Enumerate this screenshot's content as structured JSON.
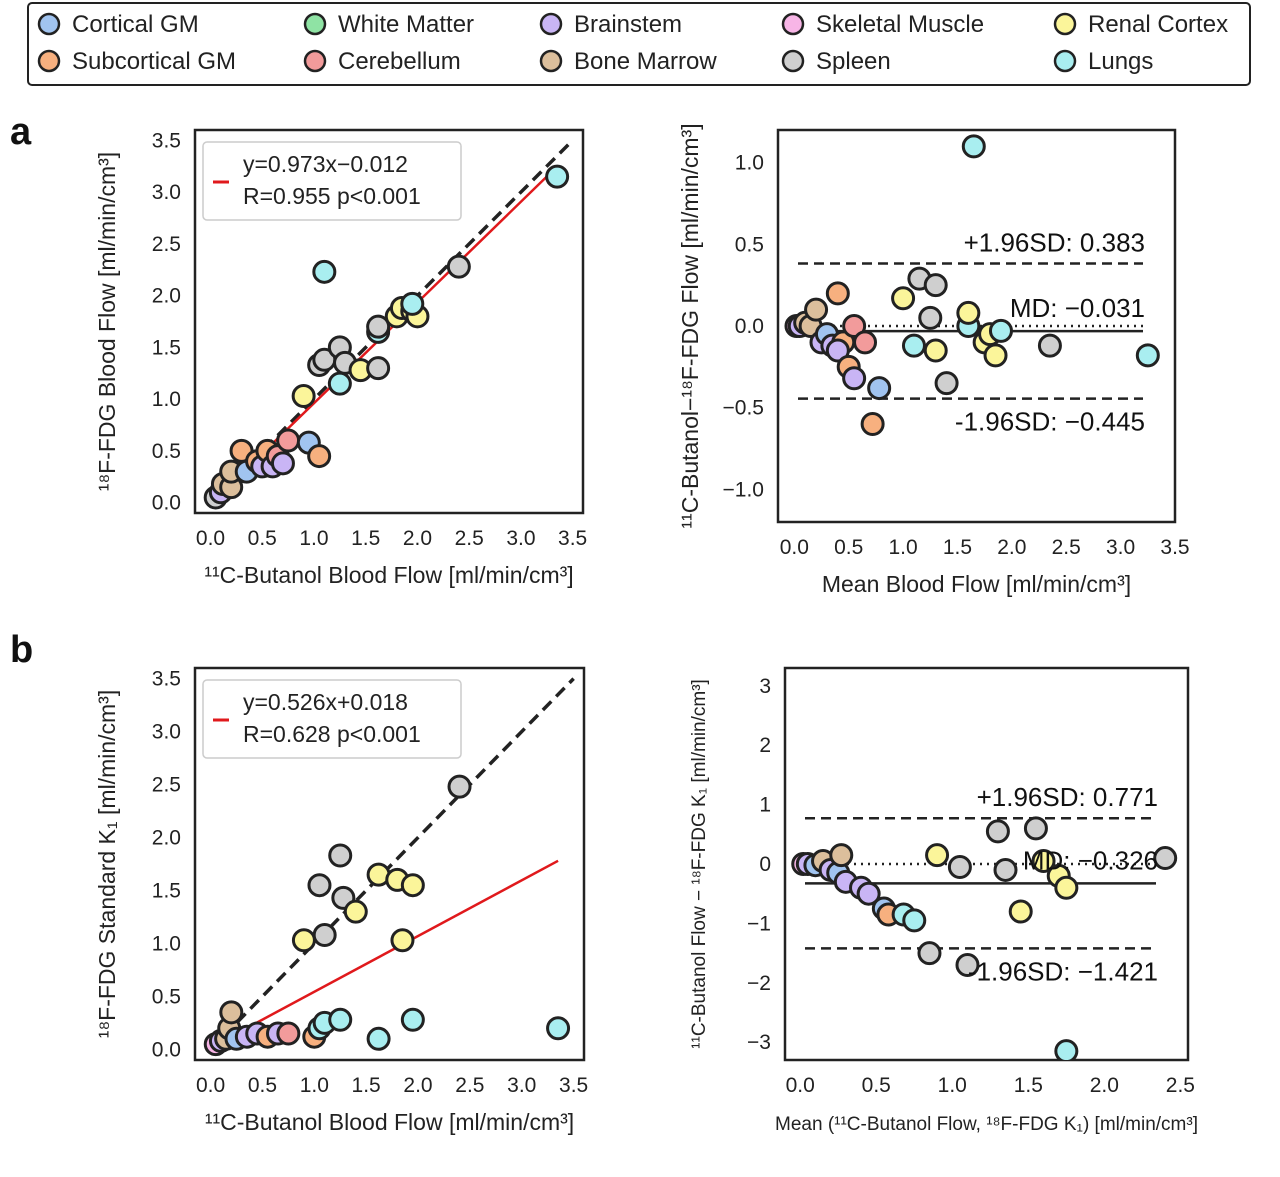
{
  "legend": {
    "items": [
      {
        "label": "Cortical GM",
        "color": "#a1c4f0"
      },
      {
        "label": "Subcortical GM",
        "color": "#f7b07f"
      },
      {
        "label": "White Matter",
        "color": "#8fe3a4"
      },
      {
        "label": "Cerebellum",
        "color": "#f29b9b"
      },
      {
        "label": "Brainstem",
        "color": "#c9b5f5"
      },
      {
        "label": "Bone Marrow",
        "color": "#dcbf9c"
      },
      {
        "label": "Skeletal Muscle",
        "color": "#f7b5e6"
      },
      {
        "label": "Spleen",
        "color": "#cfcfcf"
      },
      {
        "label": "Renal Cortex",
        "color": "#fbf59a"
      },
      {
        "label": "Lungs",
        "color": "#a9eef0"
      }
    ]
  },
  "panels": {
    "a": "a",
    "b": "b"
  },
  "chart_data": [
    {
      "id": "a-scatter",
      "type": "scatter",
      "xlabel": "¹¹C-Butanol Blood Flow [ml/min/cm³]",
      "ylabel": "¹⁸F-FDG Blood Flow [ml/min/cm³]",
      "xlim": [
        -0.15,
        3.6
      ],
      "ylim": [
        -0.1,
        3.6
      ],
      "xticks": [
        "0.0",
        "0.5",
        "1.0",
        "1.5",
        "2.0",
        "2.5",
        "3.0",
        "3.5"
      ],
      "yticks": [
        "0.0",
        "0.5",
        "1.0",
        "1.5",
        "2.0",
        "2.5",
        "3.0",
        "3.5"
      ],
      "fit": {
        "line1": "y=0.973x−0.012",
        "line2": "R=0.955 p<0.001",
        "slope": 0.973,
        "intercept": -0.012,
        "color": "#e0191c"
      },
      "identity_line": true,
      "points": [
        {
          "x": 0.05,
          "y": 0.05,
          "c": 7
        },
        {
          "x": 0.1,
          "y": 0.1,
          "c": 4
        },
        {
          "x": 0.12,
          "y": 0.18,
          "c": 5
        },
        {
          "x": 0.2,
          "y": 0.15,
          "c": 5
        },
        {
          "x": 0.2,
          "y": 0.3,
          "c": 5
        },
        {
          "x": 0.3,
          "y": 0.5,
          "c": 1
        },
        {
          "x": 0.35,
          "y": 0.3,
          "c": 0
        },
        {
          "x": 0.45,
          "y": 0.4,
          "c": 1
        },
        {
          "x": 0.5,
          "y": 0.35,
          "c": 4
        },
        {
          "x": 0.55,
          "y": 0.5,
          "c": 1
        },
        {
          "x": 0.6,
          "y": 0.35,
          "c": 4
        },
        {
          "x": 0.65,
          "y": 0.45,
          "c": 3
        },
        {
          "x": 0.7,
          "y": 0.38,
          "c": 4
        },
        {
          "x": 0.75,
          "y": 0.6,
          "c": 3
        },
        {
          "x": 0.95,
          "y": 0.58,
          "c": 0
        },
        {
          "x": 1.05,
          "y": 0.45,
          "c": 1
        },
        {
          "x": 0.9,
          "y": 1.03,
          "c": 8
        },
        {
          "x": 1.05,
          "y": 1.33,
          "c": 7
        },
        {
          "x": 1.1,
          "y": 1.38,
          "c": 7
        },
        {
          "x": 1.25,
          "y": 1.5,
          "c": 7
        },
        {
          "x": 1.25,
          "y": 1.15,
          "c": 9
        },
        {
          "x": 1.3,
          "y": 1.35,
          "c": 7
        },
        {
          "x": 1.45,
          "y": 1.28,
          "c": 8
        },
        {
          "x": 1.1,
          "y": 2.23,
          "c": 9
        },
        {
          "x": 1.62,
          "y": 1.3,
          "c": 7
        },
        {
          "x": 1.62,
          "y": 1.65,
          "c": 9
        },
        {
          "x": 1.62,
          "y": 1.7,
          "c": 7
        },
        {
          "x": 1.8,
          "y": 1.8,
          "c": 8
        },
        {
          "x": 1.85,
          "y": 1.88,
          "c": 8
        },
        {
          "x": 1.95,
          "y": 1.85,
          "c": 8
        },
        {
          "x": 2.0,
          "y": 1.8,
          "c": 8
        },
        {
          "x": 1.95,
          "y": 1.92,
          "c": 9
        },
        {
          "x": 2.4,
          "y": 2.28,
          "c": 7
        },
        {
          "x": 3.35,
          "y": 3.15,
          "c": 9
        }
      ]
    },
    {
      "id": "a-bland",
      "type": "scatter",
      "xlabel": "Mean Blood Flow [ml/min/cm³]",
      "ylabel": "¹¹C-Butanol−¹⁸F-FDG Flow [ml/min/cm³]",
      "xlim": [
        -0.15,
        3.5
      ],
      "ylim": [
        -1.2,
        1.2
      ],
      "xticks": [
        "0.0",
        "0.5",
        "1.0",
        "1.5",
        "2.0",
        "2.5",
        "3.0",
        "3.5"
      ],
      "yticks": [
        "1.0",
        "0.5",
        "0.0",
        "−0.5",
        "−1.0"
      ],
      "ytick_values": [
        1.0,
        0.5,
        0.0,
        -0.5,
        -1.0
      ],
      "md": -0.031,
      "upper": 0.383,
      "lower": -0.445,
      "upper_label": "+1.96SD: 0.383",
      "md_label": "MD: −0.031",
      "lower_label": "-1.96SD: −0.445",
      "points": [
        {
          "x": 0.02,
          "y": 0.0,
          "c": 6
        },
        {
          "x": 0.05,
          "y": 0.0,
          "c": 4
        },
        {
          "x": 0.1,
          "y": 0.02,
          "c": 5
        },
        {
          "x": 0.15,
          "y": 0.0,
          "c": 5
        },
        {
          "x": 0.2,
          "y": 0.1,
          "c": 5
        },
        {
          "x": 0.25,
          "y": -0.1,
          "c": 4
        },
        {
          "x": 0.3,
          "y": -0.05,
          "c": 0
        },
        {
          "x": 0.35,
          "y": -0.12,
          "c": 4
        },
        {
          "x": 0.4,
          "y": 0.2,
          "c": 1
        },
        {
          "x": 0.45,
          "y": -0.1,
          "c": 1
        },
        {
          "x": 0.4,
          "y": -0.15,
          "c": 4
        },
        {
          "x": 0.5,
          "y": -0.25,
          "c": 1
        },
        {
          "x": 0.55,
          "y": -0.32,
          "c": 4
        },
        {
          "x": 0.55,
          "y": 0.0,
          "c": 3
        },
        {
          "x": 0.65,
          "y": -0.1,
          "c": 3
        },
        {
          "x": 0.72,
          "y": -0.6,
          "c": 1
        },
        {
          "x": 0.78,
          "y": -0.38,
          "c": 0
        },
        {
          "x": 1.0,
          "y": 0.17,
          "c": 8
        },
        {
          "x": 1.1,
          "y": -0.12,
          "c": 9
        },
        {
          "x": 1.15,
          "y": 0.29,
          "c": 7
        },
        {
          "x": 1.25,
          "y": 0.05,
          "c": 7
        },
        {
          "x": 1.3,
          "y": -0.15,
          "c": 8
        },
        {
          "x": 1.3,
          "y": 0.25,
          "c": 7
        },
        {
          "x": 1.4,
          "y": -0.35,
          "c": 7
        },
        {
          "x": 1.6,
          "y": 0.0,
          "c": 9
        },
        {
          "x": 1.6,
          "y": 0.08,
          "c": 8
        },
        {
          "x": 1.65,
          "y": 1.1,
          "c": 9
        },
        {
          "x": 1.75,
          "y": -0.1,
          "c": 8
        },
        {
          "x": 1.8,
          "y": -0.05,
          "c": 8
        },
        {
          "x": 1.85,
          "y": -0.18,
          "c": 8
        },
        {
          "x": 1.9,
          "y": -0.03,
          "c": 9
        },
        {
          "x": 2.35,
          "y": -0.12,
          "c": 7
        },
        {
          "x": 3.25,
          "y": -0.18,
          "c": 9
        }
      ]
    },
    {
      "id": "b-scatter",
      "type": "scatter",
      "xlabel": "¹¹C-Butanol Blood Flow [ml/min/cm³]",
      "ylabel": "¹⁸F-FDG Standard K₁ [ml/min/cm³]",
      "xlim": [
        -0.15,
        3.6
      ],
      "ylim": [
        -0.1,
        3.6
      ],
      "xticks": [
        "0.0",
        "0.5",
        "1.0",
        "1.5",
        "2.0",
        "2.5",
        "3.0",
        "3.5"
      ],
      "yticks": [
        "0.0",
        "0.5",
        "1.0",
        "1.5",
        "2.0",
        "2.5",
        "3.0",
        "3.5"
      ],
      "fit": {
        "line1": "y=0.526x+0.018",
        "line2": "R=0.628 p<0.001",
        "slope": 0.526,
        "intercept": 0.018,
        "color": "#e0191c",
        "x_end": 3.35
      },
      "identity_line": true,
      "points": [
        {
          "x": 0.05,
          "y": 0.05,
          "c": 6
        },
        {
          "x": 0.1,
          "y": 0.08,
          "c": 4
        },
        {
          "x": 0.15,
          "y": 0.1,
          "c": 5
        },
        {
          "x": 0.18,
          "y": 0.2,
          "c": 5
        },
        {
          "x": 0.2,
          "y": 0.35,
          "c": 5
        },
        {
          "x": 0.25,
          "y": 0.1,
          "c": 0
        },
        {
          "x": 0.35,
          "y": 0.12,
          "c": 4
        },
        {
          "x": 0.45,
          "y": 0.15,
          "c": 4
        },
        {
          "x": 0.55,
          "y": 0.12,
          "c": 1
        },
        {
          "x": 0.65,
          "y": 0.15,
          "c": 4
        },
        {
          "x": 0.75,
          "y": 0.15,
          "c": 3
        },
        {
          "x": 1.0,
          "y": 0.12,
          "c": 1
        },
        {
          "x": 1.05,
          "y": 0.2,
          "c": 9
        },
        {
          "x": 1.1,
          "y": 0.25,
          "c": 9
        },
        {
          "x": 1.25,
          "y": 0.28,
          "c": 9
        },
        {
          "x": 0.9,
          "y": 1.03,
          "c": 8
        },
        {
          "x": 1.05,
          "y": 1.55,
          "c": 7
        },
        {
          "x": 1.1,
          "y": 1.08,
          "c": 7
        },
        {
          "x": 1.25,
          "y": 1.83,
          "c": 7
        },
        {
          "x": 1.28,
          "y": 1.43,
          "c": 7
        },
        {
          "x": 1.4,
          "y": 1.3,
          "c": 8
        },
        {
          "x": 1.62,
          "y": 1.65,
          "c": 8
        },
        {
          "x": 1.62,
          "y": 0.1,
          "c": 9
        },
        {
          "x": 1.8,
          "y": 1.6,
          "c": 8
        },
        {
          "x": 1.85,
          "y": 1.03,
          "c": 8
        },
        {
          "x": 1.95,
          "y": 1.55,
          "c": 8
        },
        {
          "x": 1.95,
          "y": 0.28,
          "c": 9
        },
        {
          "x": 2.4,
          "y": 2.48,
          "c": 7
        },
        {
          "x": 3.35,
          "y": 0.2,
          "c": 9
        }
      ]
    },
    {
      "id": "b-bland",
      "type": "scatter",
      "xlabel": "Mean (¹¹C-Butanol Flow, ¹⁸F-FDG K₁) [ml/min/cm³]",
      "ylabel": "¹¹C-Butanol Flow − ¹⁸F-FDG K₁ [ml/min/cm³]",
      "xlim": [
        -0.1,
        2.55
      ],
      "ylim": [
        -3.3,
        3.3
      ],
      "xticks": [
        "0.0",
        "0.5",
        "1.0",
        "1.5",
        "2.0",
        "2.5"
      ],
      "yticks": [
        "3",
        "2",
        "1",
        "0",
        "−1",
        "−2",
        "−3"
      ],
      "ytick_values": [
        3,
        2,
        1,
        0,
        -1,
        -2,
        -3
      ],
      "md": -0.326,
      "upper": 0.771,
      "lower": -1.421,
      "upper_label": "+1.96SD: 0.771",
      "md_label": "MD: −0.326",
      "lower_label": "-1.96SD: −1.421",
      "points": [
        {
          "x": 0.02,
          "y": 0.0,
          "c": 6
        },
        {
          "x": 0.05,
          "y": 0.0,
          "c": 4
        },
        {
          "x": 0.1,
          "y": -0.02,
          "c": 0
        },
        {
          "x": 0.15,
          "y": 0.05,
          "c": 5
        },
        {
          "x": 0.2,
          "y": -0.1,
          "c": 4
        },
        {
          "x": 0.25,
          "y": -0.15,
          "c": 0
        },
        {
          "x": 0.27,
          "y": 0.15,
          "c": 5
        },
        {
          "x": 0.3,
          "y": -0.3,
          "c": 4
        },
        {
          "x": 0.4,
          "y": -0.4,
          "c": 4
        },
        {
          "x": 0.45,
          "y": -0.5,
          "c": 4
        },
        {
          "x": 0.55,
          "y": -0.75,
          "c": 0
        },
        {
          "x": 0.58,
          "y": -0.85,
          "c": 1
        },
        {
          "x": 0.68,
          "y": -0.85,
          "c": 9
        },
        {
          "x": 0.75,
          "y": -0.95,
          "c": 9
        },
        {
          "x": 0.85,
          "y": -1.5,
          "c": 7
        },
        {
          "x": 0.9,
          "y": 0.15,
          "c": 8
        },
        {
          "x": 1.05,
          "y": -0.05,
          "c": 7
        },
        {
          "x": 1.1,
          "y": -1.7,
          "c": 7
        },
        {
          "x": 1.3,
          "y": 0.55,
          "c": 7
        },
        {
          "x": 1.35,
          "y": -0.1,
          "c": 7
        },
        {
          "x": 1.45,
          "y": -0.8,
          "c": 8
        },
        {
          "x": 1.55,
          "y": 0.6,
          "c": 7
        },
        {
          "x": 1.6,
          "y": 0.05,
          "c": 8
        },
        {
          "x": 1.7,
          "y": -0.2,
          "c": 8
        },
        {
          "x": 1.75,
          "y": -0.4,
          "c": 8
        },
        {
          "x": 1.75,
          "y": -3.15,
          "c": 9
        },
        {
          "x": 2.4,
          "y": 0.1,
          "c": 7
        }
      ]
    }
  ]
}
